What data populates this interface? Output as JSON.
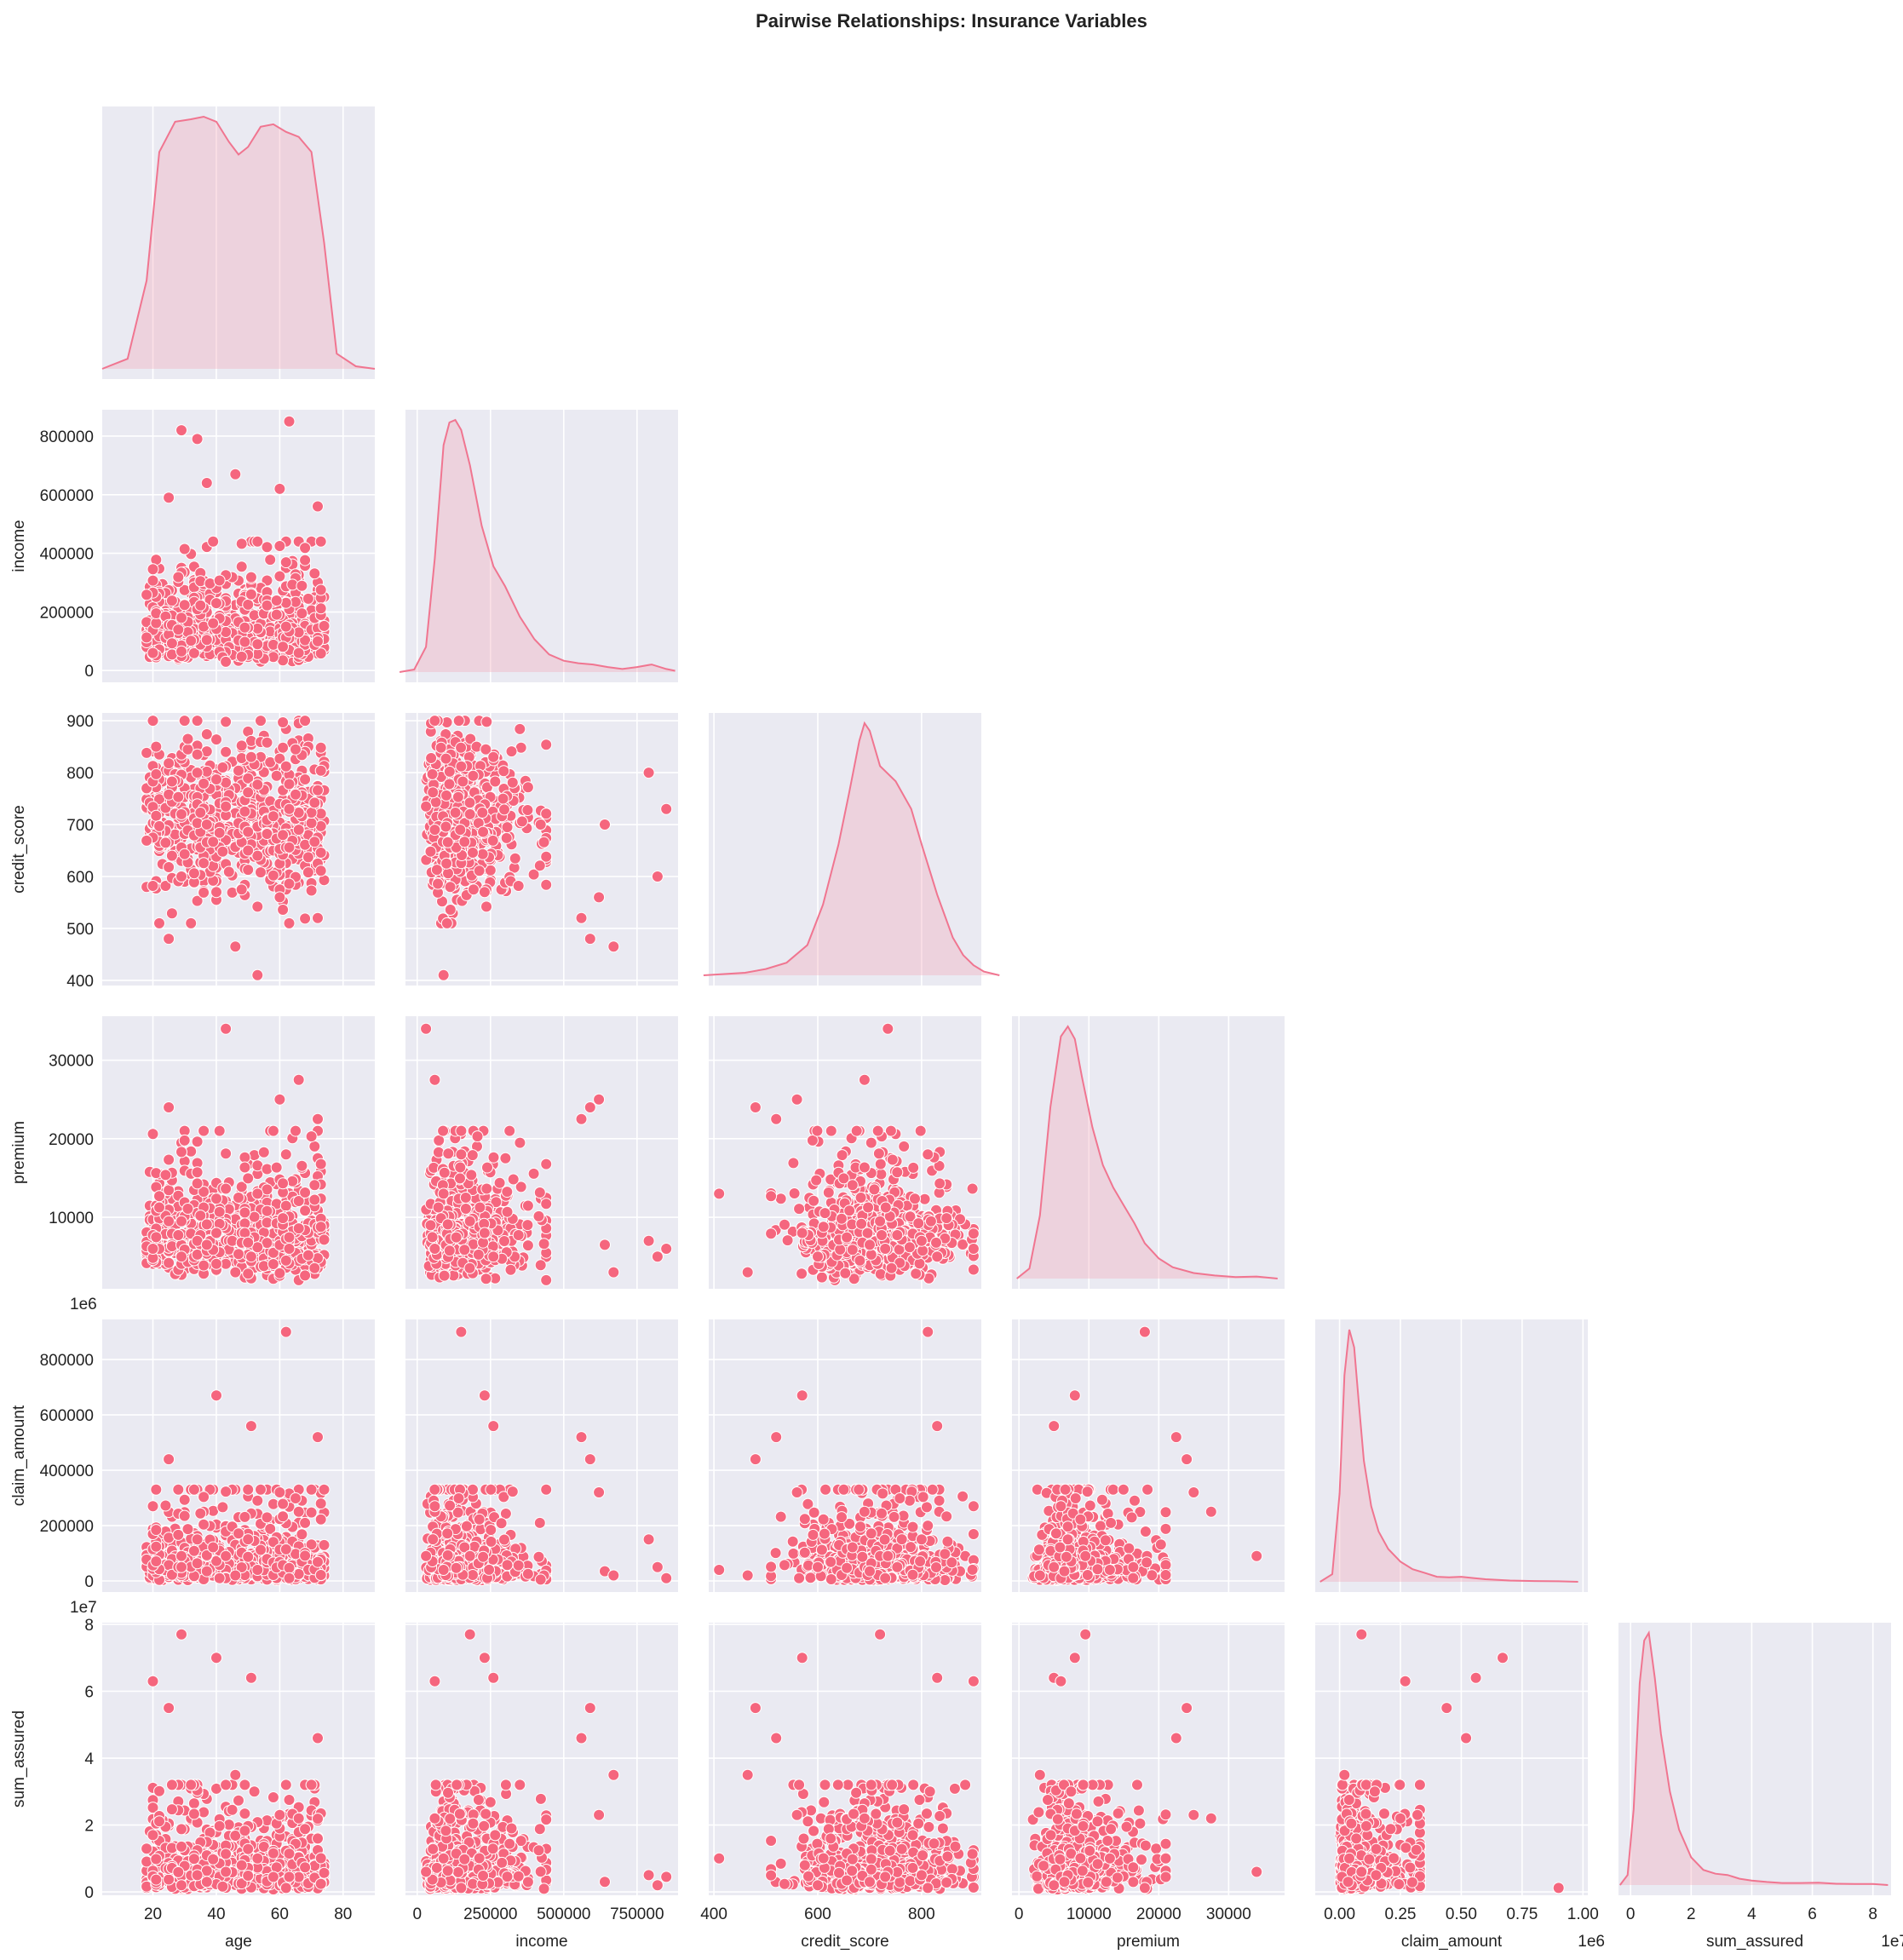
{
  "title": "Pairwise Relationships: Insurance Variables",
  "style": {
    "panel_bg": "#eaeaf2",
    "grid": "#ffffff",
    "marker": "#f5667e",
    "marker_edge": "#ffffff",
    "kde_line": "#f07590",
    "kde_fill": "#f3a5b6"
  },
  "chart_data": {
    "type": "pairplot",
    "variables": [
      "age",
      "income",
      "credit_score",
      "premium",
      "claim_amount",
      "sum_assured"
    ],
    "ylabels": [
      "",
      "income",
      "credit_score",
      "premium",
      "claim_amount",
      "sum_assured"
    ],
    "xlabels": [
      "age",
      "income",
      "credit_score",
      "premium",
      "claim_amount",
      "sum_assured"
    ],
    "corner": true,
    "grid": true,
    "axes": {
      "age": {
        "lim": [
          4,
          90
        ],
        "ticks": [
          20,
          40,
          60,
          80
        ],
        "tick_labels": [
          "20",
          "40",
          "60",
          "80"
        ],
        "offset": ""
      },
      "income": {
        "lim": [
          -40000,
          890000
        ],
        "ticks": [
          0,
          200000,
          400000,
          600000,
          800000
        ],
        "tick_labels": [
          "0",
          "200000",
          "400000",
          "600000",
          "800000"
        ],
        "xticks": [
          0,
          250000,
          500000,
          750000
        ],
        "xtick_labels": [
          "0",
          "250000",
          "500000",
          "750000"
        ],
        "offset": ""
      },
      "credit_score": {
        "lim": [
          390,
          915
        ],
        "ticks": [
          400,
          500,
          600,
          700,
          800,
          900
        ],
        "tick_labels": [
          "400",
          "500",
          "600",
          "700",
          "800",
          "900"
        ],
        "xticks": [
          400,
          600,
          800
        ],
        "xtick_labels": [
          "400",
          "600",
          "800"
        ],
        "offset": ""
      },
      "premium": {
        "lim": [
          900,
          35600
        ],
        "ticks": [
          10000,
          20000,
          30000
        ],
        "tick_labels": [
          "10000",
          "20000",
          "30000"
        ],
        "xlim": [
          -1000,
          38000
        ],
        "xticks": [
          0,
          10000,
          20000,
          30000
        ],
        "xtick_labels": [
          "0",
          "10000",
          "20000",
          "30000"
        ],
        "offset": ""
      },
      "claim_amount": {
        "lim": [
          -40000,
          945000
        ],
        "ticks": [
          0,
          200000,
          400000,
          600000,
          800000
        ],
        "tick_labels": [
          "0",
          "200000",
          "400000",
          "600000",
          "800000"
        ],
        "xlim": [
          -100000,
          1020000
        ],
        "xticks": [
          0,
          250000,
          500000,
          750000,
          1000000
        ],
        "xtick_labels": [
          "0.00",
          "0.25",
          "0.50",
          "0.75",
          "1.00"
        ],
        "offset": "1e6"
      },
      "sum_assured": {
        "lim": [
          -1000000,
          80500000
        ],
        "ticks": [
          0,
          20000000,
          40000000,
          60000000,
          80000000
        ],
        "tick_labels": [
          "0",
          "2",
          "4",
          "6",
          "8"
        ],
        "xlim": [
          -4000000,
          86000000
        ],
        "xticks": [
          0,
          20000000,
          40000000,
          60000000,
          80000000
        ],
        "xtick_labels": [
          "0",
          "2",
          "4",
          "6",
          "8"
        ],
        "offset": "1e7"
      }
    },
    "kde": {
      "age": {
        "x": [
          4,
          12,
          18,
          22,
          27,
          32,
          36,
          40,
          44,
          47,
          50,
          54,
          58,
          62,
          66,
          70,
          74,
          78,
          84,
          90
        ],
        "y": [
          0.0,
          0.04,
          0.35,
          0.86,
          0.98,
          0.99,
          1.0,
          0.98,
          0.9,
          0.85,
          0.88,
          0.96,
          0.97,
          0.94,
          0.92,
          0.86,
          0.5,
          0.06,
          0.01,
          0.0
        ]
      },
      "income": {
        "x": [
          -60000,
          -10000,
          30000,
          60000,
          90000,
          110000,
          130000,
          150000,
          180000,
          220000,
          260000,
          300000,
          350000,
          400000,
          450000,
          500000,
          550000,
          600000,
          650000,
          700000,
          750000,
          800000,
          850000,
          880000
        ],
        "y": [
          0.0,
          0.01,
          0.1,
          0.45,
          0.9,
          0.99,
          1.0,
          0.96,
          0.82,
          0.58,
          0.42,
          0.34,
          0.22,
          0.13,
          0.07,
          0.045,
          0.035,
          0.03,
          0.02,
          0.012,
          0.02,
          0.03,
          0.012,
          0.005
        ]
      },
      "credit_score": {
        "x": [
          380,
          420,
          460,
          500,
          540,
          580,
          610,
          640,
          660,
          680,
          690,
          700,
          720,
          750,
          780,
          800,
          830,
          860,
          880,
          900,
          920,
          950
        ],
        "y": [
          0.0,
          0.005,
          0.01,
          0.025,
          0.05,
          0.12,
          0.28,
          0.52,
          0.72,
          0.93,
          1.0,
          0.97,
          0.83,
          0.77,
          0.66,
          0.52,
          0.32,
          0.15,
          0.08,
          0.04,
          0.015,
          0.0
        ]
      },
      "premium": {
        "x": [
          -300,
          1500,
          3000,
          4500,
          6000,
          7000,
          8000,
          9000,
          10500,
          12000,
          13500,
          15000,
          16500,
          18000,
          20000,
          22000,
          25000,
          28000,
          31000,
          34000,
          37000
        ],
        "y": [
          0.0,
          0.04,
          0.25,
          0.68,
          0.96,
          1.0,
          0.95,
          0.8,
          0.6,
          0.45,
          0.36,
          0.29,
          0.22,
          0.14,
          0.08,
          0.045,
          0.022,
          0.012,
          0.006,
          0.008,
          0.0
        ]
      },
      "claim_amount": {
        "x": [
          -80000,
          -30000,
          0,
          20000,
          40000,
          60000,
          80000,
          100000,
          130000,
          160000,
          200000,
          250000,
          300000,
          350000,
          400000,
          450000,
          500000,
          550000,
          600000,
          700000,
          800000,
          900000,
          980000
        ],
        "y": [
          0.0,
          0.03,
          0.35,
          0.82,
          1.0,
          0.93,
          0.7,
          0.48,
          0.3,
          0.2,
          0.13,
          0.08,
          0.05,
          0.035,
          0.02,
          0.018,
          0.02,
          0.015,
          0.01,
          0.005,
          0.003,
          0.002,
          0.0
        ]
      },
      "sum_assured": {
        "x": [
          -3500000,
          -1000000,
          1000000,
          3000000,
          4500000,
          6000000,
          8000000,
          10000000,
          13000000,
          16000000,
          20000000,
          24000000,
          28000000,
          32000000,
          36000000,
          40000000,
          45000000,
          50000000,
          56000000,
          62000000,
          68000000,
          74000000,
          80000000,
          85000000
        ],
        "y": [
          0.0,
          0.04,
          0.3,
          0.8,
          0.97,
          1.0,
          0.82,
          0.6,
          0.37,
          0.22,
          0.11,
          0.06,
          0.045,
          0.04,
          0.025,
          0.018,
          0.012,
          0.008,
          0.008,
          0.009,
          0.005,
          0.004,
          0.004,
          0.0
        ]
      }
    },
    "points": {
      "n": 700,
      "outliers": [
        {
          "age": 62,
          "income": 150000,
          "credit_score": 812,
          "premium": 18000,
          "claim_amount": 900000,
          "sum_assured": 1200000
        },
        {
          "age": 29,
          "income": 180000,
          "credit_score": 720,
          "premium": 9500,
          "claim_amount": 90000,
          "sum_assured": 77000000
        },
        {
          "age": 43,
          "income": 30000,
          "credit_score": 735,
          "premium": 34000,
          "claim_amount": 90000,
          "sum_assured": 6000000
        },
        {
          "age": 63,
          "income": 850000,
          "credit_score": 730,
          "premium": 6000,
          "claim_amount": 10000,
          "sum_assured": 4500000
        },
        {
          "age": 29,
          "income": 820000,
          "credit_score": 600,
          "premium": 5000,
          "claim_amount": 50000,
          "sum_assured": 2000000
        },
        {
          "age": 34,
          "income": 790000,
          "credit_score": 800,
          "premium": 7000,
          "claim_amount": 150000,
          "sum_assured": 5000000
        },
        {
          "age": 53,
          "income": 90000,
          "credit_score": 410,
          "premium": 13000,
          "claim_amount": 40000,
          "sum_assured": 10000000
        },
        {
          "age": 66,
          "income": 60000,
          "credit_score": 690,
          "premium": 27500,
          "claim_amount": 250000,
          "sum_assured": 22000000
        },
        {
          "age": 40,
          "income": 230000,
          "credit_score": 570,
          "premium": 8000,
          "claim_amount": 670000,
          "sum_assured": 70000000
        },
        {
          "age": 51,
          "income": 260000,
          "credit_score": 830,
          "premium": 5000,
          "claim_amount": 560000,
          "sum_assured": 64000000
        },
        {
          "age": 20,
          "income": 60000,
          "credit_score": 900,
          "premium": 6000,
          "claim_amount": 270000,
          "sum_assured": 63000000
        },
        {
          "age": 60,
          "income": 620000,
          "credit_score": 560,
          "premium": 25000,
          "claim_amount": 320000,
          "sum_assured": 23000000
        },
        {
          "age": 37,
          "income": 640000,
          "credit_score": 700,
          "premium": 6500,
          "claim_amount": 35000,
          "sum_assured": 3000000
        },
        {
          "age": 72,
          "income": 560000,
          "credit_score": 520,
          "premium": 22500,
          "claim_amount": 520000,
          "sum_assured": 46000000
        },
        {
          "age": 25,
          "income": 590000,
          "credit_score": 480,
          "premium": 24000,
          "claim_amount": 440000,
          "sum_assured": 55000000
        },
        {
          "age": 46,
          "income": 670000,
          "credit_score": 465,
          "premium": 3000,
          "claim_amount": 20000,
          "sum_assured": 35000000
        }
      ]
    }
  }
}
